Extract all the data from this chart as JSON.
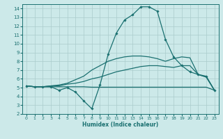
{
  "xlabel": "Humidex (Indice chaleur)",
  "xlim": [
    -0.5,
    23.5
  ],
  "ylim": [
    2,
    14.5
  ],
  "xticks": [
    0,
    1,
    2,
    3,
    4,
    5,
    6,
    7,
    8,
    9,
    10,
    11,
    12,
    13,
    14,
    15,
    16,
    17,
    18,
    19,
    20,
    21,
    22,
    23
  ],
  "yticks": [
    2,
    3,
    4,
    5,
    6,
    7,
    8,
    9,
    10,
    11,
    12,
    13,
    14
  ],
  "background_color": "#cce9e9",
  "grid_color": "#aacccc",
  "line_color": "#1a7070",
  "curve1_x": [
    0,
    1,
    2,
    3,
    4,
    5,
    6,
    7,
    8,
    9,
    10,
    11,
    12,
    13,
    14,
    15,
    16,
    17,
    18,
    19,
    20,
    21,
    22,
    23
  ],
  "curve1_y": [
    5.2,
    5.1,
    5.1,
    5.1,
    5.1,
    5.1,
    5.1,
    5.1,
    5.05,
    5.05,
    5.05,
    5.05,
    5.05,
    5.05,
    5.05,
    5.05,
    5.05,
    5.05,
    5.05,
    5.05,
    5.05,
    5.05,
    5.05,
    4.7
  ],
  "curve2_x": [
    0,
    1,
    2,
    3,
    4,
    5,
    6,
    7,
    8,
    9,
    10,
    11,
    12,
    13,
    14,
    15,
    16,
    17,
    18,
    19,
    20,
    21,
    22,
    23
  ],
  "curve2_y": [
    5.2,
    5.1,
    5.1,
    5.2,
    5.2,
    5.4,
    5.5,
    5.7,
    6.0,
    6.2,
    6.5,
    6.8,
    7.0,
    7.2,
    7.4,
    7.5,
    7.5,
    7.4,
    7.3,
    7.5,
    7.5,
    6.5,
    6.2,
    4.7
  ],
  "curve3_x": [
    0,
    1,
    2,
    3,
    4,
    5,
    6,
    7,
    8,
    9,
    10,
    11,
    12,
    13,
    14,
    15,
    16,
    17,
    18,
    19,
    20,
    21,
    22,
    23
  ],
  "curve3_y": [
    5.2,
    5.1,
    5.1,
    5.2,
    5.3,
    5.5,
    5.9,
    6.3,
    7.0,
    7.5,
    8.0,
    8.3,
    8.5,
    8.6,
    8.6,
    8.5,
    8.3,
    8.0,
    8.3,
    8.5,
    8.4,
    6.5,
    6.2,
    4.7
  ],
  "curve4_x": [
    0,
    1,
    2,
    3,
    4,
    5,
    6,
    7,
    8,
    9,
    10,
    11,
    12,
    13,
    14,
    15,
    16,
    17,
    18,
    19,
    20,
    21,
    22,
    23
  ],
  "curve4_y": [
    5.2,
    5.1,
    5.1,
    5.1,
    4.7,
    5.0,
    4.5,
    3.5,
    2.6,
    5.3,
    8.8,
    11.2,
    12.7,
    13.3,
    14.2,
    14.2,
    13.7,
    10.5,
    8.5,
    7.5,
    6.8,
    6.5,
    6.3,
    4.7
  ]
}
